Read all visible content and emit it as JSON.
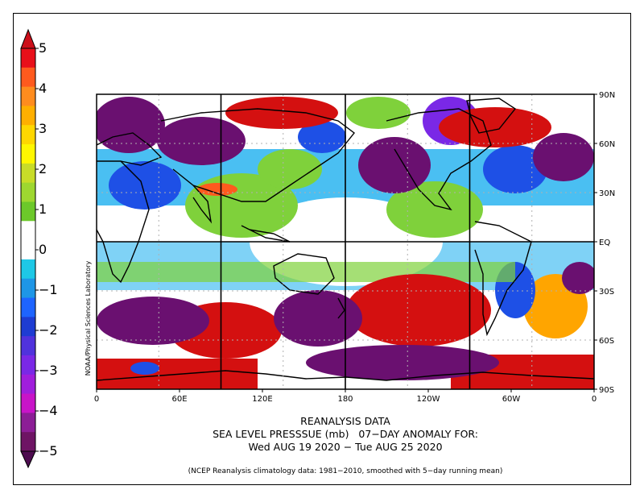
{
  "colorbar": {
    "ticks": [
      {
        "label": "5",
        "value": 5
      },
      {
        "label": "4",
        "value": 4
      },
      {
        "label": "3",
        "value": 3
      },
      {
        "label": "2",
        "value": 2
      },
      {
        "label": "1",
        "value": 1
      },
      {
        "label": "0",
        "value": 0
      },
      {
        "label": "−1",
        "value": -1
      },
      {
        "label": "−2",
        "value": -2
      },
      {
        "label": "−3",
        "value": -3
      },
      {
        "label": "−4",
        "value": -4
      },
      {
        "label": "−5",
        "value": -5
      }
    ],
    "colors_top_to_bottom": [
      "#e8101a",
      "#ff5a1e",
      "#ff8c1e",
      "#ffaf00",
      "#ffd700",
      "#fff700",
      "#c8dc28",
      "#9ed730",
      "#6cc82a",
      "#ffffff",
      "#ffffff",
      "#1ec8e6",
      "#1e96e6",
      "#1e64ff",
      "#1e3cd2",
      "#5032dc",
      "#7a28e6",
      "#a01edc",
      "#c814c8",
      "#8c1e96",
      "#6e1464"
    ]
  },
  "map": {
    "lat_labels": [
      "90N",
      "60N",
      "30N",
      "EQ",
      "30S",
      "60S",
      "90S"
    ],
    "lon_labels": [
      "0",
      "60E",
      "120E",
      "180",
      "120W",
      "60W",
      "0"
    ],
    "colors": {
      "strong_positive": "#d41010",
      "positive": "#ff5a1e",
      "moderate_positive": "#ffa500",
      "weak_positive": "#ffe135",
      "slight_positive": "#7fd13b",
      "neutral": "#ffffff",
      "slight_negative": "#2ab4f0",
      "negative": "#1e50e6",
      "strong_negative": "#7a28e6",
      "very_strong_negative": "#6a1070",
      "coastline": "#000000",
      "grid": "#b0b0b0"
    }
  },
  "title": {
    "line1": "REANALYSIS DATA",
    "line2": "SEA LEVEL PRESSSUE (mb)   07−DAY ANOMALY FOR:",
    "line3": "Wed AUG 19 2020 − Tue AUG 25 2020"
  },
  "footnote": "(NCEP Reanalysis climatology data: 1981−2010, smoothed with 5−day running mean)",
  "credit": "NOAA/Physical Sciences Laboratory"
}
